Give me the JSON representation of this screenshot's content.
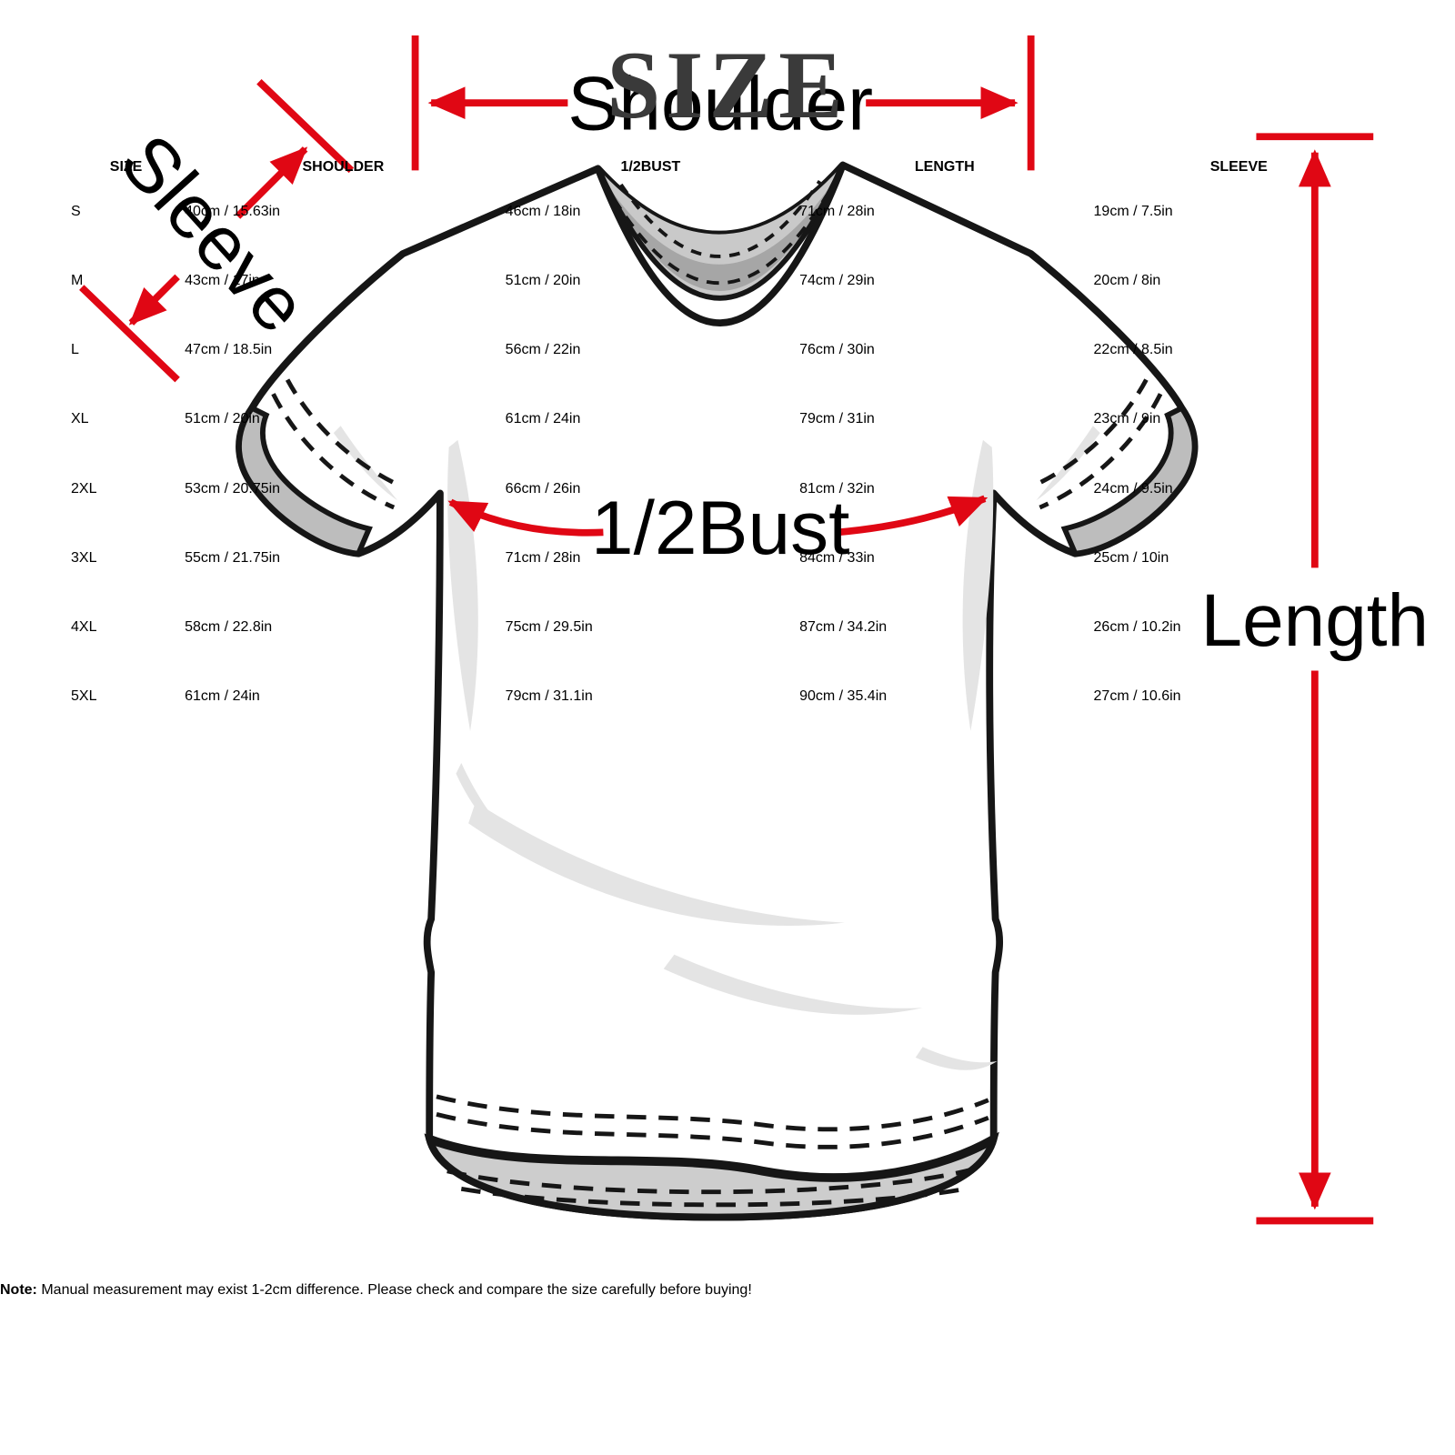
{
  "title": "SIZE",
  "table": {
    "headers": [
      "SIZE",
      "SHOULDER",
      "1/2BUST",
      "LENGTH",
      "SLEEVE"
    ],
    "rows": [
      [
        "S",
        "40cm / 15.63in",
        "46cm / 18in",
        "71cm / 28in",
        "19cm / 7.5in"
      ],
      [
        "M",
        "43cm / 17in",
        "51cm / 20in",
        "74cm / 29in",
        "20cm / 8in"
      ],
      [
        "L",
        "47cm / 18.5in",
        "56cm / 22in",
        "76cm / 30in",
        "22cm / 8.5in"
      ],
      [
        "XL",
        "51cm / 20in",
        "61cm / 24in",
        "79cm / 31in",
        "23cm / 9in"
      ],
      [
        "2XL",
        "53cm / 20.75in",
        "66cm / 26in",
        "81cm / 32in",
        "24cm / 9.5in"
      ],
      [
        "3XL",
        "55cm / 21.75in",
        "71cm / 28in",
        "84cm / 33in",
        "25cm / 10in"
      ],
      [
        "4XL",
        "58cm / 22.8in",
        "75cm / 29.5in",
        "87cm / 34.2in",
        "26cm / 10.2in"
      ],
      [
        "5XL",
        "61cm / 24in",
        "79cm / 31.1in",
        "90cm / 35.4in",
        "27cm / 10.6in"
      ]
    ]
  },
  "diagram": {
    "labels": {
      "shoulder": "Shoulder",
      "sleeve": "Sleeve",
      "bust": "1/2Bust",
      "length": "Length"
    },
    "accent_color": "#e00714"
  },
  "note": {
    "label": "Note:",
    "text": " Manual measurement may exist 1-2cm difference. Please check and compare the size carefully before buying!"
  }
}
